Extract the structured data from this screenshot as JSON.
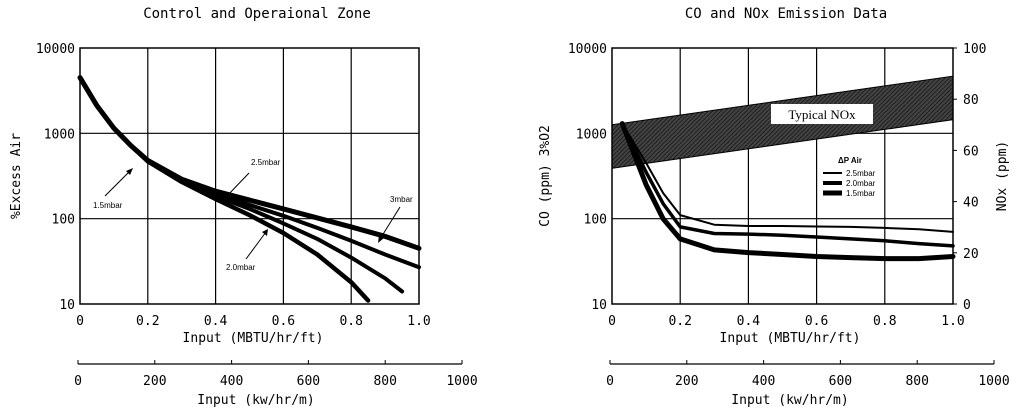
{
  "chart_data": [
    {
      "type": "line",
      "title": "Control and Operaional Zone",
      "xlabel": "Input (MBTU/hr/ft)",
      "ylabel": "%Excess Air",
      "xlim": [
        0,
        1.0
      ],
      "ylim": [
        10,
        10000
      ],
      "yscale": "log",
      "grid": true,
      "x_ticks": [
        "0",
        "0.2",
        "0.4",
        "0.6",
        "0.8",
        "1.0"
      ],
      "y_ticks": [
        "10",
        "100",
        "1000",
        "10000"
      ],
      "secondary_xaxis": {
        "label": "Input (kw/hr/m)",
        "ticks": [
          "0",
          "200",
          "400",
          "600",
          "800",
          "1000"
        ],
        "range": [
          0,
          1000
        ]
      },
      "series": [
        {
          "name": "1.5mbar",
          "x": [
            0,
            0.05,
            0.1,
            0.15,
            0.2,
            0.3,
            0.4,
            0.5,
            0.6,
            0.7,
            0.8,
            0.9,
            1.0
          ],
          "y": [
            4500,
            2100,
            1150,
            720,
            480,
            290,
            210,
            165,
            130,
            102,
            80,
            62,
            45
          ]
        },
        {
          "name": "2.0mbar",
          "x": [
            0,
            0.05,
            0.1,
            0.15,
            0.2,
            0.3,
            0.4,
            0.5,
            0.6,
            0.7,
            0.8,
            0.85
          ],
          "y": [
            4500,
            2100,
            1150,
            720,
            470,
            270,
            170,
            110,
            68,
            38,
            18,
            11
          ]
        },
        {
          "name": "2.5mbar",
          "x": [
            0,
            0.05,
            0.1,
            0.15,
            0.2,
            0.3,
            0.4,
            0.5,
            0.6,
            0.7,
            0.8,
            0.9,
            0.95
          ],
          "y": [
            4500,
            2100,
            1150,
            720,
            470,
            275,
            185,
            130,
            88,
            58,
            35,
            20,
            14
          ]
        },
        {
          "name": "3mbar",
          "x": [
            0,
            0.05,
            0.1,
            0.15,
            0.2,
            0.3,
            0.4,
            0.5,
            0.6,
            0.7,
            0.8,
            0.9,
            1.0
          ],
          "y": [
            4500,
            2100,
            1150,
            720,
            470,
            280,
            195,
            145,
            108,
            78,
            55,
            38,
            27
          ]
        }
      ],
      "annotations": [
        "1.5mbar",
        "2.5mbar",
        "3mbar",
        "2.0mbar"
      ]
    },
    {
      "type": "line",
      "title": "CO and NOx Emission Data",
      "xlabel": "Input (MBTU/hr/ft)",
      "ylabel": "CO (ppm) 3%O2",
      "y2label": "NOx (ppm)",
      "xlim": [
        0,
        1.0
      ],
      "ylim": [
        10,
        10000
      ],
      "yscale": "log",
      "y2lim": [
        0,
        100
      ],
      "grid": true,
      "x_ticks": [
        "0",
        "0.2",
        "0.4",
        "0.6",
        "0.8",
        "1.0"
      ],
      "y_ticks": [
        "10",
        "100",
        "1000",
        "10000"
      ],
      "y2_ticks": [
        "0",
        "20",
        "40",
        "60",
        "80",
        "100"
      ],
      "secondary_xaxis": {
        "label": "Input (kw/hr/m)",
        "ticks": [
          "0",
          "200",
          "400",
          "600",
          "800",
          "1000"
        ],
        "range": [
          0,
          1000
        ]
      },
      "band": {
        "name": "Typical NOx",
        "x": [
          0,
          1.0
        ],
        "lower_nox": [
          53,
          72
        ],
        "upper_nox": [
          70,
          89
        ]
      },
      "legend": {
        "title": "ΔP Air",
        "entries": [
          "2.5mbar",
          "2.0mbar",
          "1.5mbar"
        ],
        "placement": "right"
      },
      "series": [
        {
          "name": "2.5mbar",
          "x": [
            0.03,
            0.1,
            0.15,
            0.2,
            0.3,
            0.4,
            0.5,
            0.6,
            0.7,
            0.8,
            0.9,
            1.0
          ],
          "y": [
            1300,
            450,
            200,
            110,
            85,
            82,
            82,
            81,
            80,
            78,
            75,
            70
          ]
        },
        {
          "name": "2.0mbar",
          "x": [
            0.03,
            0.1,
            0.15,
            0.2,
            0.3,
            0.4,
            0.5,
            0.6,
            0.7,
            0.8,
            0.9,
            1.0
          ],
          "y": [
            1300,
            350,
            150,
            80,
            67,
            66,
            64,
            61,
            58,
            55,
            51,
            48
          ]
        },
        {
          "name": "1.5mbar",
          "x": [
            0.03,
            0.1,
            0.15,
            0.2,
            0.3,
            0.4,
            0.5,
            0.6,
            0.7,
            0.8,
            0.9,
            1.0
          ],
          "y": [
            1300,
            250,
            100,
            58,
            43,
            40,
            38,
            36,
            35,
            34,
            34,
            36
          ]
        }
      ]
    }
  ]
}
